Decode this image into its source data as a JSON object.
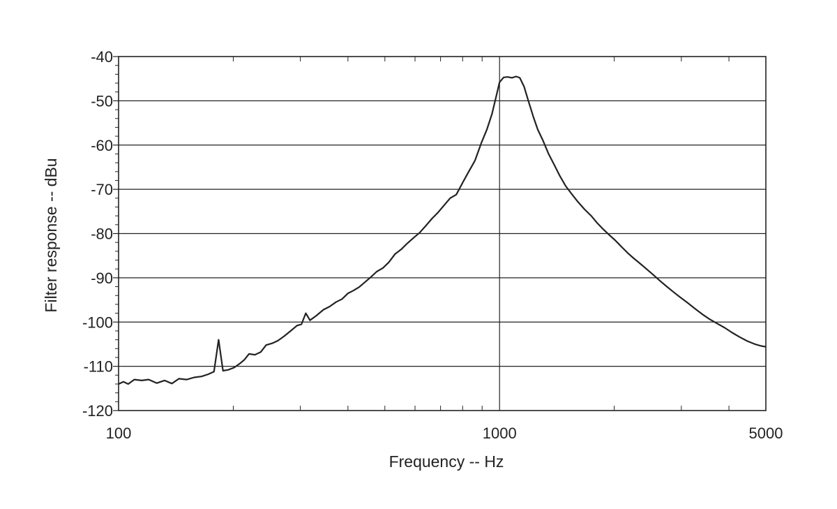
{
  "chart_data": {
    "type": "line",
    "title": "",
    "xlabel": "Frequency -- Hz",
    "ylabel": "Filter response -- dBu",
    "xscale": "log",
    "xlim": [
      100,
      5000
    ],
    "ylim": [
      -120,
      -40
    ],
    "grid": true,
    "x_tick_labels": [
      {
        "value": 100,
        "label": "100"
      },
      {
        "value": 1000,
        "label": "1000"
      },
      {
        "value": 5000,
        "label": "5000"
      }
    ],
    "y_tick_labels": [
      {
        "value": -40,
        "label": "-40"
      },
      {
        "value": -50,
        "label": "-50"
      },
      {
        "value": -60,
        "label": "-60"
      },
      {
        "value": -70,
        "label": "-70"
      },
      {
        "value": -80,
        "label": "-80"
      },
      {
        "value": -90,
        "label": "-90"
      },
      {
        "value": -100,
        "label": "-100"
      },
      {
        "value": -110,
        "label": "-110"
      },
      {
        "value": -120,
        "label": "-120"
      }
    ],
    "series": [
      {
        "color": "#222222",
        "points": [
          [
            100,
            -114
          ],
          [
            103,
            -113.5
          ],
          [
            106,
            -114
          ],
          [
            110,
            -113
          ],
          [
            115,
            -113.2
          ],
          [
            120,
            -113
          ],
          [
            126,
            -113.8
          ],
          [
            132,
            -113.2
          ],
          [
            138,
            -113.9
          ],
          [
            144,
            -112.8
          ],
          [
            151,
            -113
          ],
          [
            158,
            -112.5
          ],
          [
            165,
            -112.3
          ],
          [
            172,
            -111.8
          ],
          [
            178,
            -111.2
          ],
          [
            183,
            -104
          ],
          [
            188,
            -111
          ],
          [
            194,
            -110.8
          ],
          [
            201,
            -110.3
          ],
          [
            208,
            -109.4
          ],
          [
            214,
            -108.5
          ],
          [
            220,
            -107.2
          ],
          [
            228,
            -107.4
          ],
          [
            236,
            -106.8
          ],
          [
            244,
            -105.2
          ],
          [
            253,
            -104.8
          ],
          [
            262,
            -104.2
          ],
          [
            272,
            -103.2
          ],
          [
            283,
            -102
          ],
          [
            294,
            -100.8
          ],
          [
            302,
            -100.5
          ],
          [
            310,
            -98
          ],
          [
            318,
            -99.6
          ],
          [
            330,
            -98.6
          ],
          [
            345,
            -97.2
          ],
          [
            358,
            -96.5
          ],
          [
            372,
            -95.5
          ],
          [
            386,
            -94.8
          ],
          [
            400,
            -93.5
          ],
          [
            413,
            -92.9
          ],
          [
            428,
            -92.1
          ],
          [
            443,
            -91
          ],
          [
            460,
            -89.8
          ],
          [
            476,
            -88.6
          ],
          [
            494,
            -87.8
          ],
          [
            512,
            -86.5
          ],
          [
            532,
            -84.6
          ],
          [
            553,
            -83.5
          ],
          [
            573,
            -82.2
          ],
          [
            594,
            -81
          ],
          [
            617,
            -79.8
          ],
          [
            641,
            -78.2
          ],
          [
            665,
            -76.6
          ],
          [
            690,
            -75.2
          ],
          [
            717,
            -73.5
          ],
          [
            742,
            -72
          ],
          [
            770,
            -71.2
          ],
          [
            800,
            -68.5
          ],
          [
            830,
            -66
          ],
          [
            862,
            -63.5
          ],
          [
            895,
            -59.6
          ],
          [
            926,
            -56.5
          ],
          [
            955,
            -53
          ],
          [
            980,
            -49
          ],
          [
            1000,
            -45.8
          ],
          [
            1025,
            -44.7
          ],
          [
            1050,
            -44.6
          ],
          [
            1078,
            -44.8
          ],
          [
            1105,
            -44.5
          ],
          [
            1130,
            -44.8
          ],
          [
            1160,
            -46.8
          ],
          [
            1190,
            -50
          ],
          [
            1225,
            -53.5
          ],
          [
            1260,
            -56.5
          ],
          [
            1300,
            -59
          ],
          [
            1345,
            -62
          ],
          [
            1392,
            -64.5
          ],
          [
            1440,
            -67
          ],
          [
            1490,
            -69.2
          ],
          [
            1545,
            -71
          ],
          [
            1605,
            -72.8
          ],
          [
            1670,
            -74.5
          ],
          [
            1740,
            -76
          ],
          [
            1800,
            -77.5
          ],
          [
            1870,
            -79
          ],
          [
            1940,
            -80.3
          ],
          [
            2010,
            -81.5
          ],
          [
            2090,
            -83
          ],
          [
            2170,
            -84.4
          ],
          [
            2250,
            -85.6
          ],
          [
            2340,
            -86.8
          ],
          [
            2430,
            -88
          ],
          [
            2530,
            -89.3
          ],
          [
            2630,
            -90.6
          ],
          [
            2740,
            -91.9
          ],
          [
            2860,
            -93.2
          ],
          [
            2980,
            -94.4
          ],
          [
            3110,
            -95.6
          ],
          [
            3250,
            -96.9
          ],
          [
            3400,
            -98.2
          ],
          [
            3550,
            -99.3
          ],
          [
            3720,
            -100.3
          ],
          [
            3900,
            -101.3
          ],
          [
            4080,
            -102.4
          ],
          [
            4270,
            -103.4
          ],
          [
            4470,
            -104.3
          ],
          [
            4680,
            -105
          ],
          [
            4860,
            -105.4
          ],
          [
            5000,
            -105.6
          ]
        ]
      }
    ]
  }
}
